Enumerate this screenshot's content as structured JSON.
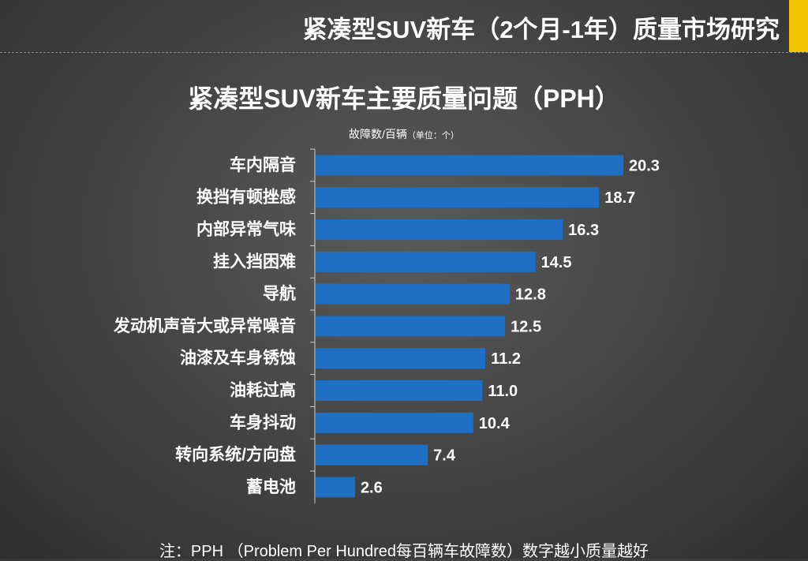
{
  "header": {
    "title": "紧凑型SUV新车（2个月-1年）质量市场研究"
  },
  "colors": {
    "accent": "#f5c400",
    "bar": "#1f6fc4",
    "axis": "#cfcfcf"
  },
  "chart_data": {
    "type": "bar",
    "orientation": "horizontal",
    "title": "紧凑型SUV新车主要质量问题（PPH）",
    "unit_label": "故障数/百辆",
    "unit_label_suffix": "（单位：个）",
    "categories": [
      "车内隔音",
      "换挡有顿挫感",
      "内部异常气味",
      "挂入挡困难",
      "导航",
      "发动机声音大或异常噪音",
      "油漆及车身锈蚀",
      "油耗过高",
      "车身抖动",
      "转向系统/方向盘",
      "蓄电池"
    ],
    "values": [
      20.3,
      18.7,
      16.3,
      14.5,
      12.8,
      12.5,
      11.2,
      11.0,
      10.4,
      7.4,
      2.6
    ],
    "value_labels": [
      "20.3",
      "18.7",
      "16.3",
      "14.5",
      "12.8",
      "12.5",
      "11.2",
      "11.0",
      "10.4",
      "7.4",
      "2.6"
    ],
    "xlim": [
      0,
      20.3
    ],
    "grid": false,
    "legend": "none"
  },
  "footnote": "注：PPH （Problem Per Hundred每百辆车故障数）数字越小质量越好"
}
